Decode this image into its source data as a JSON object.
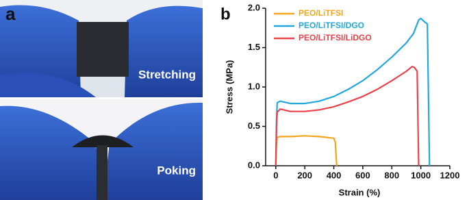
{
  "panel_a": {
    "label": "a",
    "photos": [
      "Stretching",
      "Poking"
    ]
  },
  "chart_data": {
    "type": "line",
    "panel_label": "b",
    "x_label": "Strain (%)",
    "y_label": "Stress (MPa)",
    "xlim": [
      -70,
      1200
    ],
    "xticks": [
      0,
      200,
      400,
      600,
      800,
      1000,
      1200
    ],
    "ylim": [
      0,
      2.0
    ],
    "yticks": [
      {
        "value": 0,
        "label": "0.0"
      },
      0.5,
      {
        "value": 1,
        "label": "1.0"
      },
      1.5,
      {
        "value": 2,
        "label": "2.0"
      }
    ],
    "legend": "upper left",
    "series": [
      {
        "name": "PEO/LiTFSI",
        "color": "#f4a51c",
        "x": [
          0,
          5,
          10,
          30,
          100,
          200,
          300,
          400,
          410,
          420
        ],
        "values": [
          0,
          0.3,
          0.36,
          0.37,
          0.37,
          0.38,
          0.37,
          0.35,
          0.3,
          0
        ]
      },
      {
        "name": "PEO/LiTFSI/DGO",
        "color": "#22a7dc",
        "x": [
          0,
          5,
          10,
          30,
          100,
          200,
          300,
          400,
          500,
          600,
          700,
          800,
          900,
          950,
          985,
          1000,
          1030,
          1045,
          1060
        ],
        "values": [
          0,
          0.6,
          0.8,
          0.82,
          0.79,
          0.79,
          0.82,
          0.88,
          0.97,
          1.08,
          1.22,
          1.38,
          1.56,
          1.68,
          1.85,
          1.87,
          1.82,
          1.8,
          0
        ]
      },
      {
        "name": "PEO/LiTFSI/LiDGO",
        "color": "#e8424a",
        "x": [
          0,
          5,
          10,
          30,
          100,
          200,
          300,
          400,
          500,
          600,
          700,
          800,
          900,
          940,
          955,
          975,
          985
        ],
        "values": [
          0,
          0.5,
          0.68,
          0.72,
          0.69,
          0.69,
          0.71,
          0.75,
          0.81,
          0.88,
          0.97,
          1.08,
          1.2,
          1.26,
          1.25,
          1.2,
          0
        ]
      }
    ]
  }
}
